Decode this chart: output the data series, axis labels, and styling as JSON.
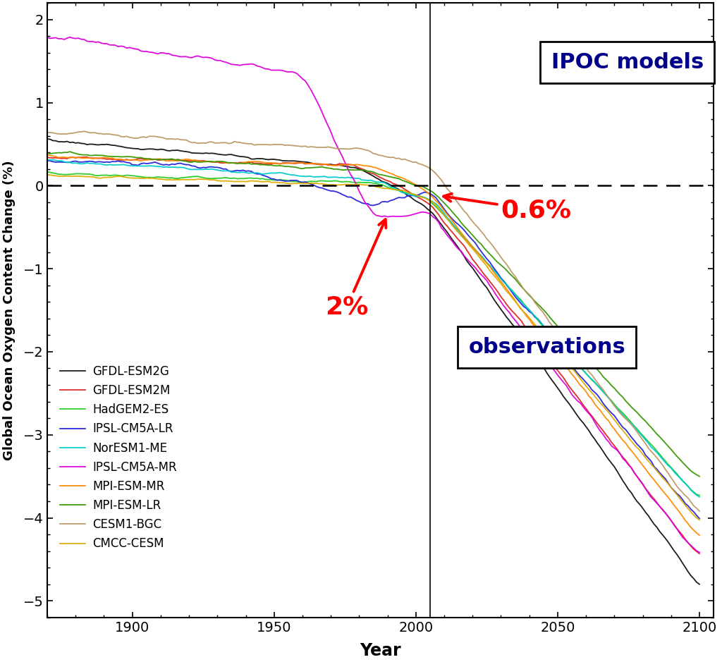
{
  "xlabel": "Year",
  "ylabel": "Global Ocean Oxygen Content Change (%)",
  "xlim": [
    1870,
    2105
  ],
  "ylim": [
    -5.2,
    2.2
  ],
  "yticks": [
    -5.0,
    -4.0,
    -3.0,
    -2.0,
    -1.0,
    0.0,
    1.0,
    2.0
  ],
  "xticks": [
    1900,
    1950,
    2000,
    2050,
    2100
  ],
  "models": [
    {
      "name": "GFDL-ESM2G",
      "color": "#111111"
    },
    {
      "name": "GFDL-ESM2M",
      "color": "#dd2222"
    },
    {
      "name": "HadGEM2-ES",
      "color": "#22cc22"
    },
    {
      "name": "IPSL-CM5A-LR",
      "color": "#2222dd"
    },
    {
      "name": "NorESM1-ME",
      "color": "#00cccc"
    },
    {
      "name": "IPSL-CM5A-MR",
      "color": "#dd00dd"
    },
    {
      "name": "MPI-ESM-MR",
      "color": "#ff8800"
    },
    {
      "name": "MPI-ESM-LR",
      "color": "#339900"
    },
    {
      "name": "CESM1-BGC",
      "color": "#bb9966"
    },
    {
      "name": "CMCC-CESM",
      "color": "#ddaa00"
    }
  ],
  "vline_year": 2005,
  "ipcc_label": "IPOC models",
  "obs_label": "observations",
  "ann_2pct": "2%",
  "ann_06pct": "0.6%"
}
